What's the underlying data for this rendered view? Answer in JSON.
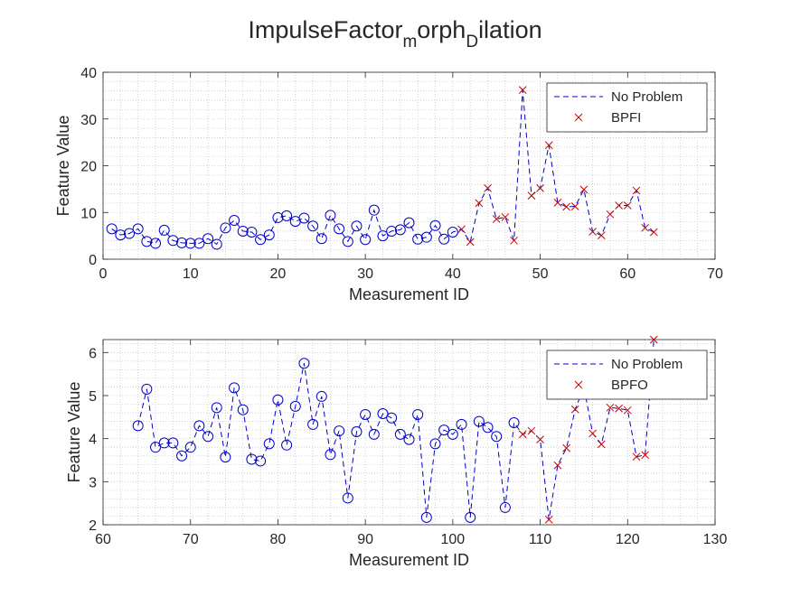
{
  "figure": {
    "title_main": "ImpulseFactor",
    "title_sub1": "m",
    "title_mid": "orph",
    "title_sub2": "D",
    "title_end": "ilation"
  },
  "colors": {
    "no_problem": "#0000cc",
    "fault": "#cc0000",
    "axis": "#262626",
    "grid": "#c8c8c8"
  },
  "chart_data": [
    {
      "type": "line",
      "xlabel": "Measurement ID",
      "ylabel": "Feature Value",
      "xlim": [
        0,
        70
      ],
      "ylim": [
        0,
        40
      ],
      "xticks": [
        0,
        10,
        20,
        30,
        40,
        50,
        60,
        70
      ],
      "yticks": [
        0,
        10,
        20,
        30,
        40
      ],
      "grid": true,
      "legend_position": "top-right",
      "legend": [
        "No Problem",
        "BPFI"
      ],
      "series": [
        {
          "name": "No Problem",
          "style": "dashed-line-circle-markers",
          "x": [
            1,
            2,
            3,
            4,
            5,
            6,
            7,
            8,
            9,
            10,
            11,
            12,
            13,
            14,
            15,
            16,
            17,
            18,
            19,
            20,
            21,
            22,
            23,
            24,
            25,
            26,
            27,
            28,
            29,
            30,
            31,
            32,
            33,
            34,
            35,
            36,
            37,
            38,
            39,
            40
          ],
          "y": [
            6.5,
            5.2,
            5.5,
            6.5,
            3.8,
            3.4,
            6.2,
            4.0,
            3.5,
            3.4,
            3.4,
            4.4,
            3.2,
            6.7,
            8.3,
            6.0,
            5.8,
            4.2,
            5.2,
            8.9,
            9.3,
            8.1,
            8.8,
            7.1,
            4.4,
            9.4,
            6.5,
            3.8,
            7.1,
            4.2,
            10.5,
            5.0,
            6.0,
            6.3,
            7.8,
            4.3,
            4.7,
            7.2,
            4.3,
            5.8
          ]
        },
        {
          "name": "BPFI",
          "style": "dashed-line-x-markers",
          "x": [
            41,
            42,
            43,
            44,
            45,
            46,
            47,
            48,
            49,
            50,
            51,
            52,
            53,
            54,
            55,
            56,
            57,
            58,
            59,
            60,
            61,
            62,
            63
          ],
          "y": [
            6.4,
            3.7,
            12.0,
            15.2,
            8.6,
            9.0,
            4.0,
            36.2,
            13.6,
            15.2,
            24.4,
            12.1,
            11.2,
            11.3,
            14.9,
            5.9,
            5.1,
            9.6,
            11.5,
            11.5,
            14.7,
            6.7,
            5.8
          ]
        }
      ]
    },
    {
      "type": "line",
      "xlabel": "Measurement ID",
      "ylabel": "Feature Value",
      "xlim": [
        60,
        130
      ],
      "ylim": [
        2,
        6.3
      ],
      "xticks": [
        60,
        70,
        80,
        90,
        100,
        110,
        120,
        130
      ],
      "yticks": [
        2,
        3,
        4,
        5,
        6
      ],
      "grid": true,
      "legend_position": "top-right",
      "legend": [
        "No Problem",
        "BPFO"
      ],
      "series": [
        {
          "name": "No Problem",
          "style": "dashed-line-circle-markers",
          "x": [
            64,
            65,
            66,
            67,
            68,
            69,
            70,
            71,
            72,
            73,
            74,
            75,
            76,
            77,
            78,
            79,
            80,
            81,
            82,
            83,
            84,
            85,
            86,
            87,
            88,
            89,
            90,
            91,
            92,
            93,
            94,
            95,
            96,
            97,
            98,
            99,
            100,
            101,
            102,
            103,
            104,
            105,
            106,
            107
          ],
          "y": [
            4.3,
            5.15,
            3.8,
            3.9,
            3.9,
            3.6,
            3.8,
            4.3,
            4.05,
            4.72,
            3.57,
            5.18,
            4.67,
            3.52,
            3.48,
            3.88,
            4.9,
            3.85,
            4.75,
            5.75,
            4.33,
            4.98,
            3.63,
            4.18,
            2.62,
            4.16,
            4.56,
            4.1,
            4.58,
            4.48,
            4.1,
            3.98,
            4.56,
            2.17,
            3.88,
            4.2,
            4.1,
            4.33,
            2.17,
            4.4,
            4.26,
            4.05,
            2.4,
            4.37
          ]
        },
        {
          "name": "BPFO",
          "style": "dashed-line-x-markers",
          "x": [
            108,
            109,
            110,
            111,
            112,
            113,
            114,
            115,
            116,
            117,
            118,
            119,
            120,
            121,
            122,
            123
          ],
          "y": [
            4.1,
            4.18,
            3.98,
            2.12,
            3.38,
            3.78,
            4.68,
            5.2,
            4.12,
            3.87,
            4.72,
            4.7,
            4.66,
            3.58,
            3.62,
            6.3
          ]
        }
      ]
    }
  ]
}
